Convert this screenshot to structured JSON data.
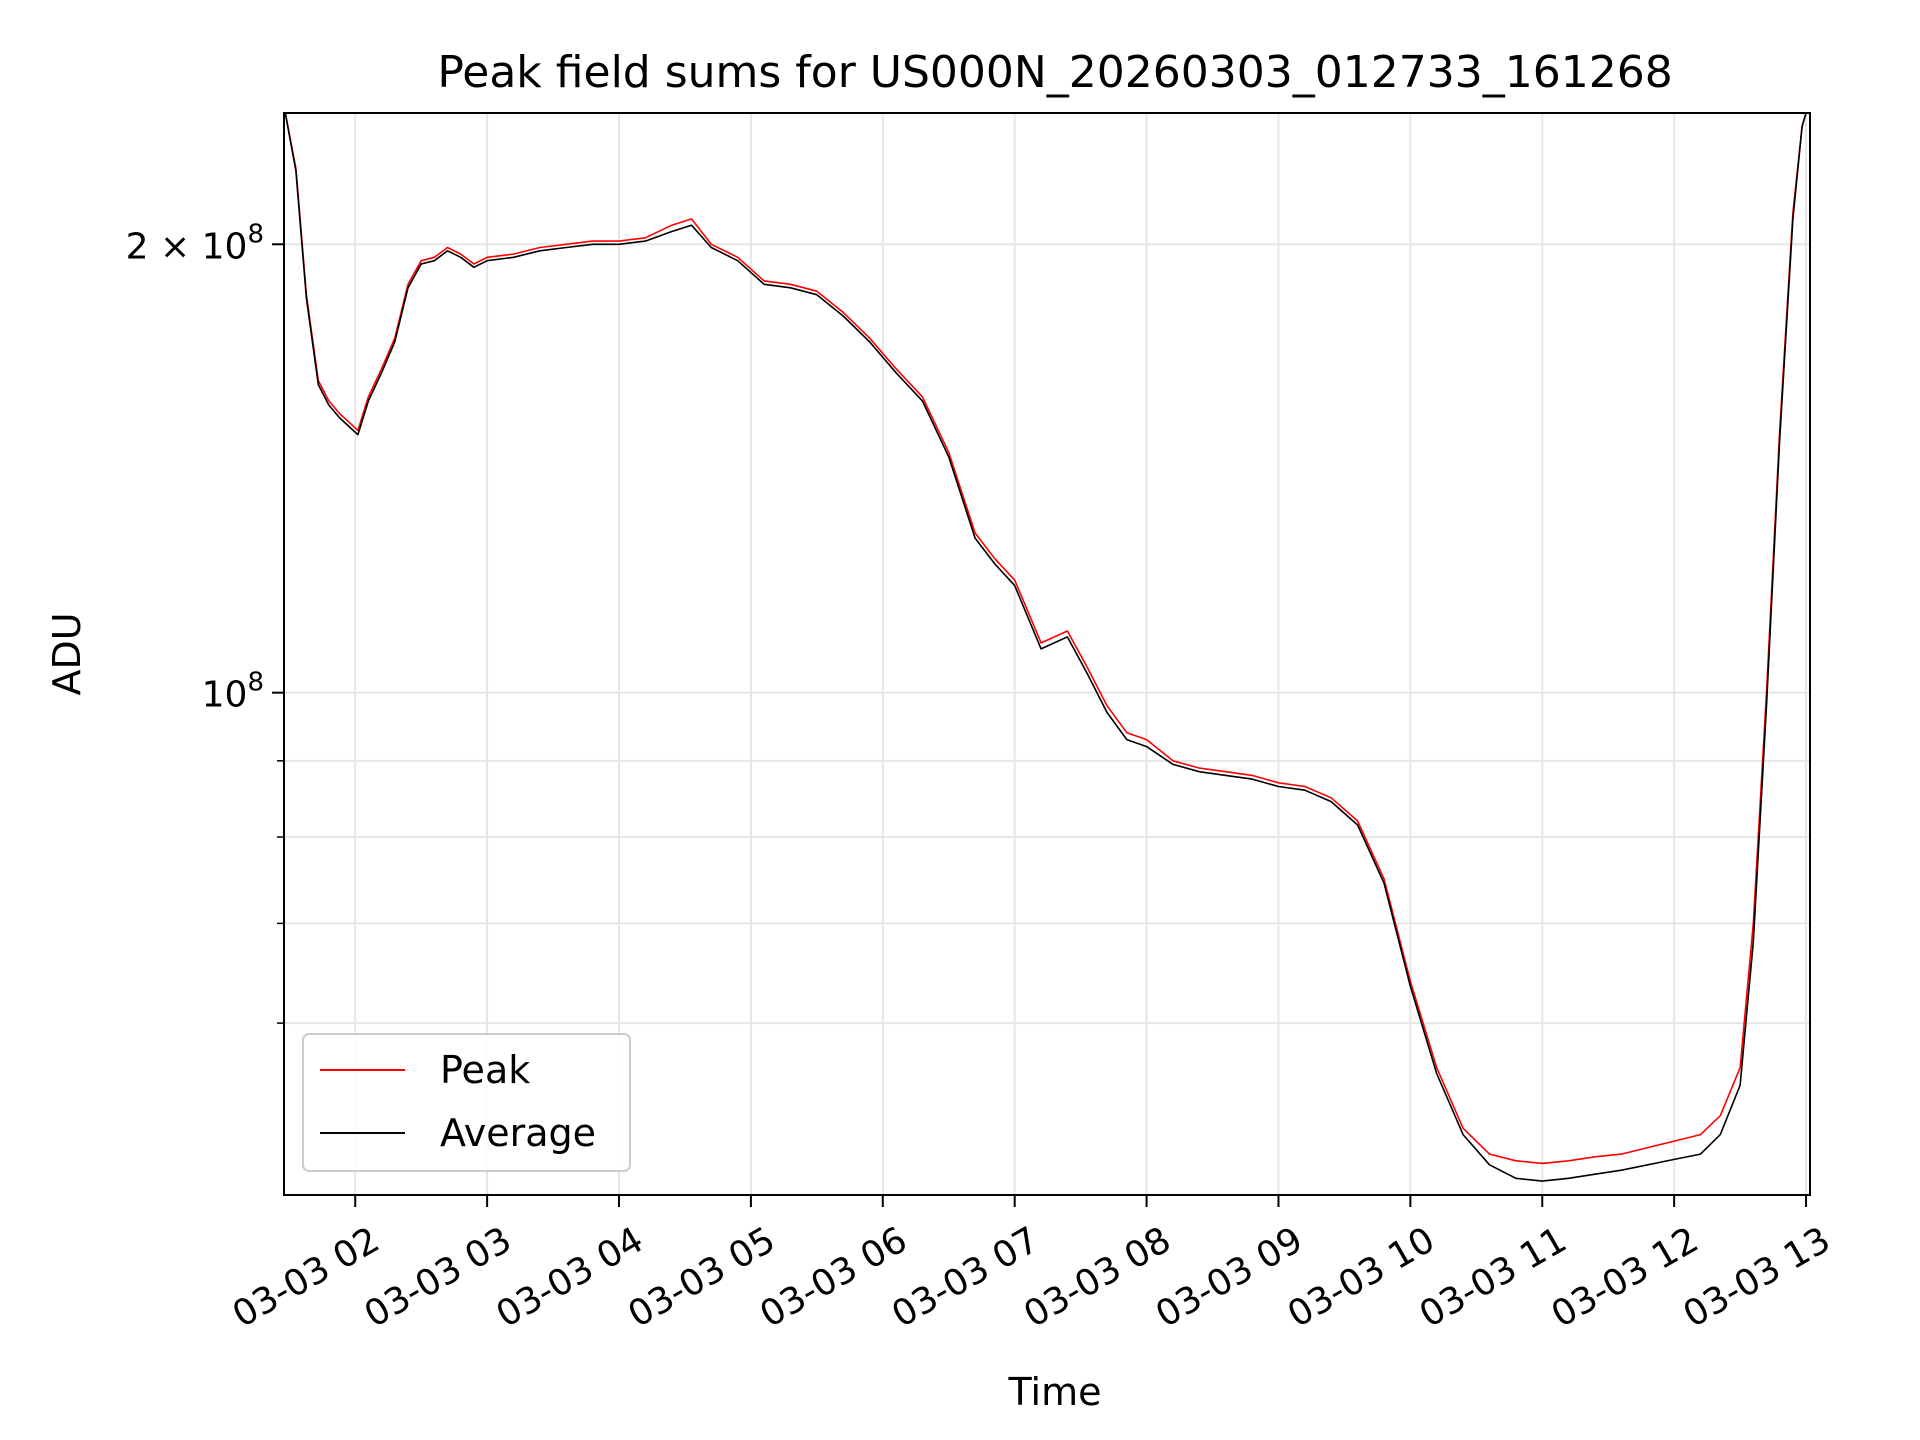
{
  "chart_data": {
    "type": "line",
    "title": "Peak field sums for US000N_20260303_012733_161268",
    "xlabel": "Time",
    "ylabel": "ADU",
    "yscale": "log",
    "ylim": [
      46000000,
      245000000
    ],
    "xlim": [
      1.46,
      13.03
    ],
    "grid": true,
    "legend_position": "lower-left",
    "x_ticks": [
      {
        "value": 2,
        "label": "03-03 02"
      },
      {
        "value": 3,
        "label": "03-03 03"
      },
      {
        "value": 4,
        "label": "03-03 04"
      },
      {
        "value": 5,
        "label": "03-03 05"
      },
      {
        "value": 6,
        "label": "03-03 06"
      },
      {
        "value": 7,
        "label": "03-03 07"
      },
      {
        "value": 8,
        "label": "03-03 08"
      },
      {
        "value": 9,
        "label": "03-03 09"
      },
      {
        "value": 10,
        "label": "03-03 10"
      },
      {
        "value": 11,
        "label": "03-03 11"
      },
      {
        "value": 12,
        "label": "03-03 12"
      },
      {
        "value": 13,
        "label": "03-03 13"
      }
    ],
    "y_ticks_major": [
      {
        "value": 100000000,
        "base": "10",
        "exp": "8",
        "prefix": ""
      },
      {
        "value": 200000000,
        "base": "10",
        "exp": "8",
        "prefix": "2 × "
      }
    ],
    "y_ticks_minor": [
      60000000,
      70000000,
      80000000,
      90000000
    ],
    "series": [
      {
        "name": "Peak",
        "color": "#ff0000",
        "x": [
          1.47,
          1.55,
          1.63,
          1.72,
          1.8,
          1.88,
          1.95,
          2.02,
          2.1,
          2.2,
          2.3,
          2.4,
          2.5,
          2.6,
          2.7,
          2.8,
          2.9,
          3.0,
          3.2,
          3.4,
          3.6,
          3.8,
          4.0,
          4.2,
          4.4,
          4.55,
          4.7,
          4.9,
          5.1,
          5.3,
          5.5,
          5.7,
          5.9,
          6.1,
          6.3,
          6.5,
          6.7,
          6.85,
          7.0,
          7.2,
          7.4,
          7.55,
          7.7,
          7.85,
          8.0,
          8.2,
          8.4,
          8.6,
          8.8,
          9.0,
          9.2,
          9.4,
          9.6,
          9.8,
          10.0,
          10.2,
          10.4,
          10.6,
          10.8,
          11.0,
          11.2,
          11.4,
          11.6,
          11.8,
          12.0,
          12.2,
          12.35,
          12.5,
          12.6,
          12.7,
          12.8,
          12.9,
          12.97,
          13.0
        ],
        "y": [
          245000000,
          225000000,
          185000000,
          162000000,
          157000000,
          154000000,
          152000000,
          150000000,
          158000000,
          165000000,
          173000000,
          188000000,
          195000000,
          196000000,
          199000000,
          197000000,
          194000000,
          196000000,
          197000000,
          199000000,
          200000000,
          201000000,
          201000000,
          202000000,
          206000000,
          208000000,
          200000000,
          196000000,
          189000000,
          188000000,
          186000000,
          180000000,
          173000000,
          165000000,
          158000000,
          145000000,
          128000000,
          123000000,
          119000000,
          108000000,
          110000000,
          104000000,
          98000000,
          94000000,
          93000000,
          90000000,
          89000000,
          88500000,
          88000000,
          87000000,
          86500000,
          85000000,
          82000000,
          75000000,
          64000000,
          56000000,
          51000000,
          49000000,
          48500000,
          48300000,
          48500000,
          48800000,
          49000000,
          49500000,
          50000000,
          50500000,
          52000000,
          56000000,
          70000000,
          100000000,
          150000000,
          210000000,
          240000000,
          245000000
        ]
      },
      {
        "name": "Average",
        "color": "#000000",
        "x": [
          1.47,
          1.55,
          1.63,
          1.72,
          1.8,
          1.88,
          1.95,
          2.02,
          2.1,
          2.2,
          2.3,
          2.4,
          2.5,
          2.6,
          2.7,
          2.8,
          2.9,
          3.0,
          3.2,
          3.4,
          3.6,
          3.8,
          4.0,
          4.2,
          4.4,
          4.55,
          4.7,
          4.9,
          5.1,
          5.3,
          5.5,
          5.7,
          5.9,
          6.1,
          6.3,
          6.5,
          6.7,
          6.85,
          7.0,
          7.2,
          7.4,
          7.55,
          7.7,
          7.85,
          8.0,
          8.2,
          8.4,
          8.6,
          8.8,
          9.0,
          9.2,
          9.4,
          9.6,
          9.8,
          10.0,
          10.2,
          10.4,
          10.6,
          10.8,
          11.0,
          11.2,
          11.4,
          11.6,
          11.8,
          12.0,
          12.2,
          12.35,
          12.5,
          12.6,
          12.7,
          12.8,
          12.9,
          12.97,
          13.0
        ],
        "y": [
          245000000,
          224000000,
          184000000,
          161000000,
          156000000,
          153000000,
          151000000,
          149000000,
          157000000,
          164000000,
          172000000,
          187000000,
          194000000,
          195000000,
          198000000,
          196000000,
          193000000,
          195000000,
          196000000,
          198000000,
          199000000,
          200000000,
          200000000,
          201000000,
          204000000,
          206000000,
          199000000,
          195000000,
          188000000,
          187000000,
          185000000,
          179000000,
          172000000,
          164000000,
          157000000,
          144000000,
          127000000,
          122000000,
          118000000,
          107000000,
          109000000,
          103000000,
          97000000,
          93000000,
          92000000,
          89500000,
          88500000,
          88000000,
          87500000,
          86500000,
          86000000,
          84500000,
          81500000,
          74500000,
          63500000,
          55500000,
          50500000,
          48200000,
          47200000,
          47000000,
          47200000,
          47500000,
          47800000,
          48200000,
          48600000,
          49000000,
          50500000,
          54500000,
          68000000,
          98000000,
          148000000,
          208000000,
          240000000,
          245000000
        ]
      }
    ]
  }
}
